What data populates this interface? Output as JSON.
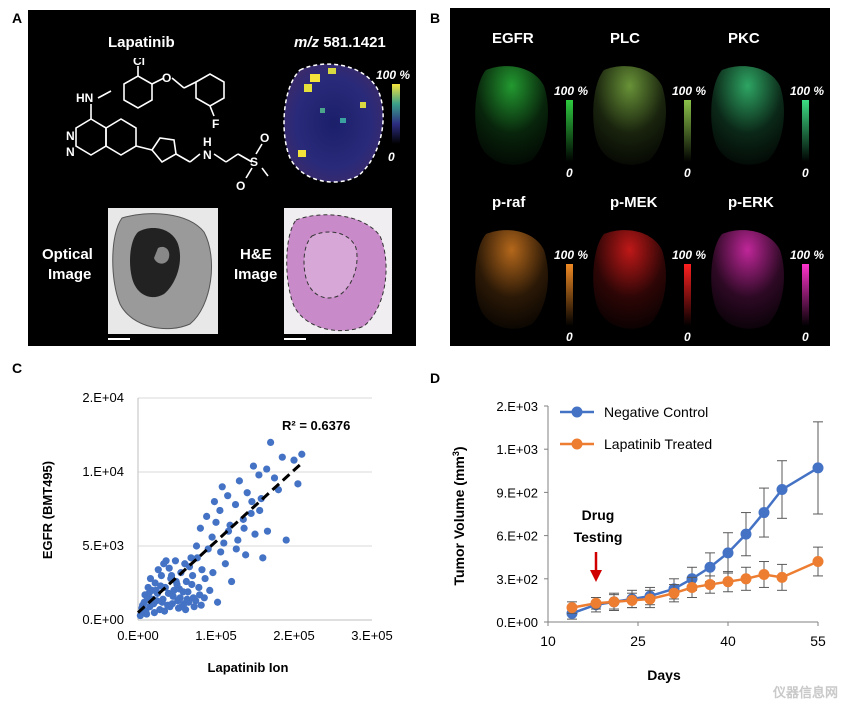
{
  "panel_labels": {
    "a": "A",
    "b": "B",
    "c": "C",
    "d": "D"
  },
  "panel_a": {
    "drug_name": "Lapatinib",
    "mz_prefix": "m/z",
    "mz_value": "581.1421",
    "scale_max": "100 %",
    "scale_min": "0",
    "optical_label_1": "Optical",
    "optical_label_2": "Image",
    "he_label_1": "H&E",
    "he_label_2": "Image",
    "structure_atoms": {
      "cl": "Cl",
      "hn": "HN",
      "o": "O",
      "f": "F",
      "h": "H",
      "n": "N",
      "s": "S",
      "o2": "O",
      "o3": "O",
      "n1": "N",
      "n2": "N"
    }
  },
  "panel_b": {
    "proteins": [
      {
        "name": "EGFR",
        "color": "#2ecc40"
      },
      {
        "name": "PLC",
        "color": "#8bc34a"
      },
      {
        "name": "PKC",
        "color": "#3ddc84"
      },
      {
        "name": "p-raf",
        "color": "#f08a24"
      },
      {
        "name": "p-MEK",
        "color": "#ff2020"
      },
      {
        "name": "p-ERK",
        "color": "#ff33cc"
      }
    ],
    "scale_max": "100 %",
    "scale_min": "0"
  },
  "panel_c": {
    "chart_data": {
      "type": "scatter",
      "xlabel": "Lapatinib Ion",
      "ylabel": "EGFR (BMT495)",
      "xlim": [
        0,
        300000
      ],
      "ylim": [
        0,
        15000
      ],
      "x_ticks": [
        0,
        100000,
        200000,
        300000
      ],
      "y_ticks": [
        0,
        5000,
        10000,
        15000
      ],
      "x_tick_labels": [
        "0.E+00",
        "1.E+05",
        "2.E+05",
        "3.E+05"
      ],
      "y_tick_labels": [
        "0.E+00",
        "5.E+03",
        "1.E+04",
        "2.E+04"
      ],
      "annotation": "R² = 0.6376",
      "trendline": {
        "x": [
          0,
          210000
        ],
        "y": [
          500,
          10600
        ]
      },
      "points": [
        [
          5000,
          800
        ],
        [
          8000,
          1200
        ],
        [
          10000,
          600
        ],
        [
          12000,
          1500
        ],
        [
          15000,
          900
        ],
        [
          18000,
          2000
        ],
        [
          20000,
          1100
        ],
        [
          22000,
          2500
        ],
        [
          25000,
          1800
        ],
        [
          28000,
          700
        ],
        [
          30000,
          3000
        ],
        [
          32000,
          1400
        ],
        [
          35000,
          2200
        ],
        [
          38000,
          1000
        ],
        [
          40000,
          3500
        ],
        [
          42000,
          2800
        ],
        [
          45000,
          1600
        ],
        [
          48000,
          4000
        ],
        [
          50000,
          2400
        ],
        [
          52000,
          800
        ],
        [
          55000,
          3200
        ],
        [
          58000,
          1900
        ],
        [
          60000,
          3800
        ],
        [
          62000,
          2600
        ],
        [
          65000,
          1200
        ],
        [
          68000,
          4200
        ],
        [
          70000,
          3000
        ],
        [
          72000,
          900
        ],
        [
          75000,
          5000
        ],
        [
          78000,
          2200
        ],
        [
          80000,
          6200
        ],
        [
          82000,
          3400
        ],
        [
          85000,
          1500
        ],
        [
          88000,
          7000
        ],
        [
          90000,
          4800
        ],
        [
          92000,
          2000
        ],
        [
          95000,
          5600
        ],
        [
          98000,
          8000
        ],
        [
          100000,
          6600
        ],
        [
          102000,
          1200
        ],
        [
          105000,
          7400
        ],
        [
          108000,
          9000
        ],
        [
          110000,
          5200
        ],
        [
          112000,
          3800
        ],
        [
          115000,
          8400
        ],
        [
          118000,
          6400
        ],
        [
          120000,
          2600
        ],
        [
          125000,
          7800
        ],
        [
          128000,
          5400
        ],
        [
          130000,
          9400
        ],
        [
          135000,
          6800
        ],
        [
          138000,
          4400
        ],
        [
          140000,
          8600
        ],
        [
          145000,
          7200
        ],
        [
          148000,
          10400
        ],
        [
          150000,
          5800
        ],
        [
          155000,
          9800
        ],
        [
          158000,
          8200
        ],
        [
          160000,
          4200
        ],
        [
          165000,
          10200
        ],
        [
          170000,
          12000
        ],
        [
          175000,
          9600
        ],
        [
          180000,
          8800
        ],
        [
          185000,
          11000
        ],
        [
          190000,
          5400
        ],
        [
          200000,
          10800
        ],
        [
          205000,
          9200
        ],
        [
          210000,
          11200
        ],
        [
          6000,
          1000
        ],
        [
          14000,
          1800
        ],
        [
          24000,
          1300
        ],
        [
          34000,
          600
        ],
        [
          44000,
          1100
        ],
        [
          54000,
          1500
        ],
        [
          64000,
          1900
        ],
        [
          74000,
          1300
        ],
        [
          16000,
          2800
        ],
        [
          26000,
          3400
        ],
        [
          36000,
          4000
        ],
        [
          46000,
          2000
        ],
        [
          56000,
          900
        ],
        [
          66000,
          3600
        ],
        [
          76000,
          4200
        ],
        [
          86000,
          2800
        ],
        [
          96000,
          3200
        ],
        [
          106000,
          4600
        ],
        [
          116000,
          6000
        ],
        [
          126000,
          4800
        ],
        [
          136000,
          6200
        ],
        [
          146000,
          8000
        ],
        [
          156000,
          7400
        ],
        [
          166000,
          6000
        ],
        [
          9000,
          1700
        ],
        [
          19000,
          1400
        ],
        [
          29000,
          2300
        ],
        [
          39000,
          1800
        ],
        [
          49000,
          2600
        ],
        [
          59000,
          1100
        ],
        [
          69000,
          2400
        ],
        [
          79000,
          1700
        ],
        [
          11000,
          400
        ],
        [
          21000,
          500
        ],
        [
          31000,
          1200
        ],
        [
          41000,
          900
        ],
        [
          51000,
          1300
        ],
        [
          61000,
          700
        ],
        [
          71000,
          1500
        ],
        [
          81000,
          1000
        ],
        [
          3000,
          300
        ],
        [
          7000,
          500
        ],
        [
          13000,
          2200
        ],
        [
          23000,
          2000
        ],
        [
          33000,
          3800
        ],
        [
          43000,
          3000
        ],
        [
          53000,
          2100
        ],
        [
          63000,
          1400
        ]
      ]
    }
  },
  "panel_d": {
    "chart_data": {
      "type": "line",
      "xlabel": "Days",
      "ylabel": "Tumor Volume (mm³)",
      "ylabel_base": "Tumor Volume (mm",
      "ylabel_sup": "3",
      "ylabel_end": ")",
      "xlim": [
        10,
        55
      ],
      "ylim": [
        0,
        1500
      ],
      "x_ticks": [
        10,
        25,
        40,
        55
      ],
      "x_tick_labels": [
        "10",
        "25",
        "40",
        "55"
      ],
      "y_ticks": [
        0,
        300,
        600,
        900,
        1200,
        1500
      ],
      "y_tick_labels": [
        "0.E+00",
        "3.E+02",
        "6.E+02",
        "9.E+02",
        "1.E+03",
        "2.E+03"
      ],
      "annotation_1": "Drug",
      "annotation_2": "Testing",
      "annotation_arrow_x": 18,
      "series": [
        {
          "name": "Negative Control",
          "color": "#4472c4",
          "x": [
            14,
            18,
            21,
            24,
            27,
            31,
            34,
            37,
            40,
            43,
            46,
            49,
            55
          ],
          "y": [
            60,
            120,
            140,
            160,
            180,
            230,
            300,
            380,
            480,
            610,
            760,
            920,
            1070
          ],
          "err": [
            40,
            50,
            60,
            60,
            60,
            70,
            80,
            100,
            140,
            150,
            170,
            200,
            320
          ]
        },
        {
          "name": "Lapatinib Treated",
          "color": "#ed7d31",
          "x": [
            14,
            18,
            21,
            24,
            27,
            31,
            34,
            37,
            40,
            43,
            46,
            49,
            55
          ],
          "y": [
            100,
            130,
            140,
            150,
            160,
            200,
            240,
            260,
            280,
            300,
            330,
            310,
            420
          ],
          "err": [
            40,
            40,
            50,
            50,
            60,
            60,
            70,
            60,
            70,
            80,
            90,
            90,
            100
          ]
        }
      ]
    }
  },
  "watermark": "仪器信息网"
}
